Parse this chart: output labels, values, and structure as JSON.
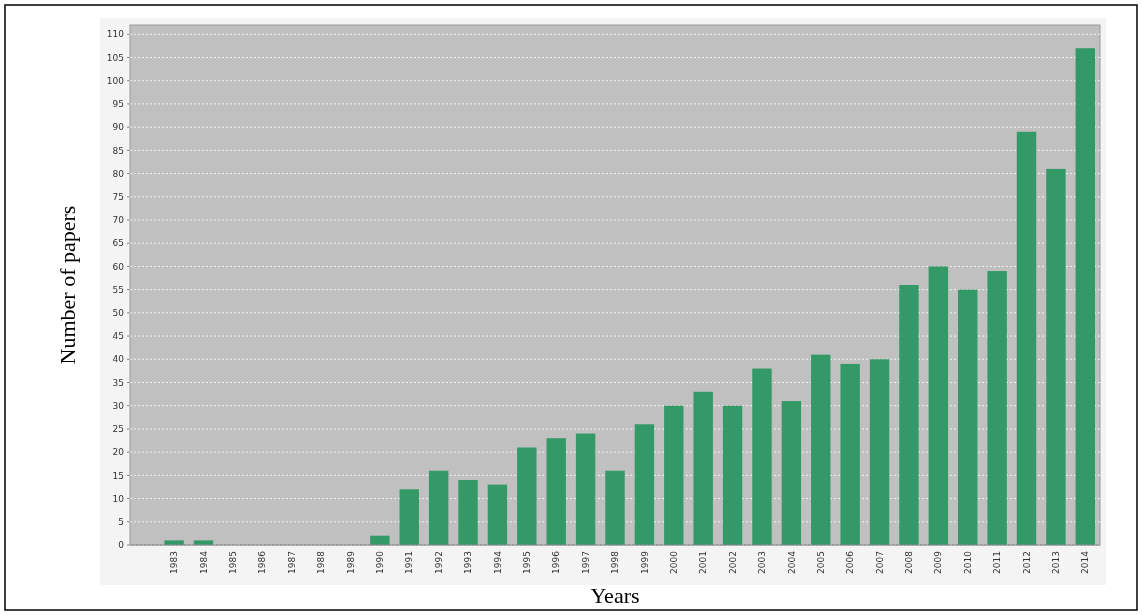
{
  "chart_data": {
    "type": "bar",
    "xlabel": "Years",
    "ylabel": "Number of papers",
    "categories": [
      "1983",
      "1984",
      "1985",
      "1986",
      "1987",
      "1988",
      "1989",
      "1990",
      "1991",
      "1992",
      "1993",
      "1994",
      "1995",
      "1996",
      "1997",
      "1998",
      "1999",
      "2000",
      "2001",
      "2002",
      "2003",
      "2004",
      "2005",
      "2006",
      "2007",
      "2008",
      "2009",
      "2010",
      "2011",
      "2012",
      "2013",
      "2014"
    ],
    "values": [
      1,
      1,
      0,
      0,
      0,
      0,
      0,
      2,
      12,
      16,
      14,
      13,
      21,
      23,
      24,
      16,
      26,
      30,
      33,
      30,
      38,
      31,
      41,
      39,
      40,
      56,
      60,
      55,
      59,
      89,
      81,
      107
    ],
    "color": "#339966",
    "ylim": [
      0,
      112
    ],
    "yticks": [
      0,
      5,
      10,
      15,
      20,
      25,
      30,
      35,
      40,
      45,
      50,
      55,
      60,
      65,
      70,
      75,
      80,
      85,
      90,
      95,
      100,
      105,
      110
    ],
    "grid": "y"
  }
}
